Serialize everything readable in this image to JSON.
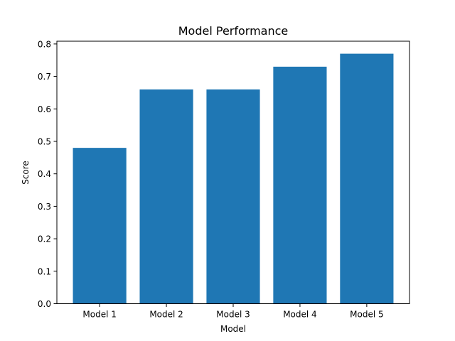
{
  "chart_data": {
    "type": "bar",
    "title": "Model Performance",
    "xlabel": "Model",
    "ylabel": "Score",
    "categories": [
      "Model 1",
      "Model 2",
      "Model 3",
      "Model 4",
      "Model 5"
    ],
    "values": [
      0.48,
      0.66,
      0.66,
      0.73,
      0.77
    ],
    "ylim": [
      0,
      0.8085
    ],
    "yticks": [
      0.0,
      0.1,
      0.2,
      0.3,
      0.4,
      0.5,
      0.6,
      0.7,
      0.8
    ],
    "ytick_labels": [
      "0.0",
      "0.1",
      "0.2",
      "0.3",
      "0.4",
      "0.5",
      "0.6",
      "0.7",
      "0.8"
    ],
    "grid": false,
    "bar_color": "#1f77b4"
  }
}
